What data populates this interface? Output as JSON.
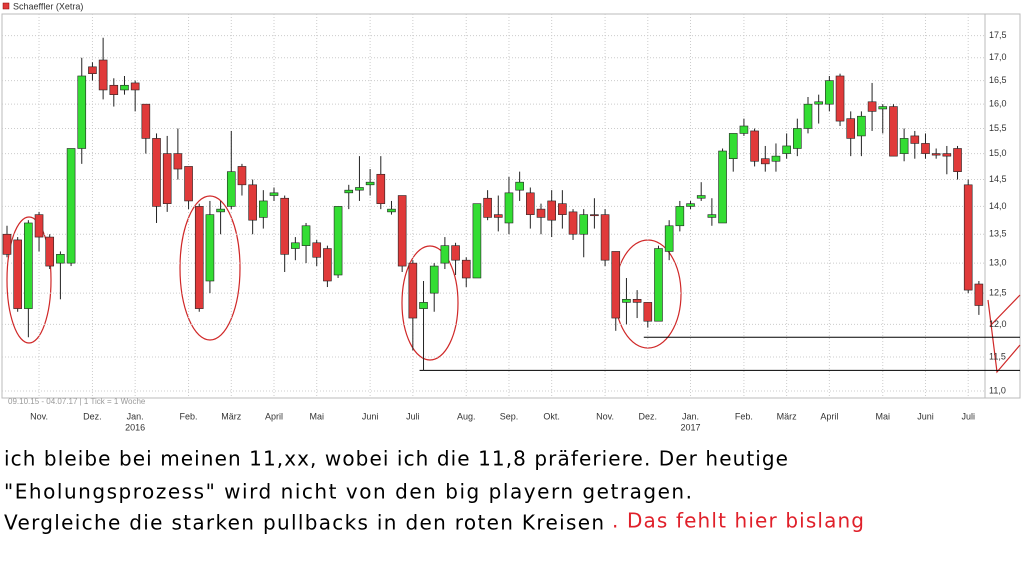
{
  "chart_data": {
    "type": "candlestick",
    "legend": "Schaeffler (Xetra)",
    "footer": "09.10.15 - 04.07.17 | 1 Tick = 1 Woche",
    "ylog": true,
    "grid": true,
    "up_color": "#33dd33",
    "down_color": "#e03a3a",
    "ylim": [
      10.9,
      18.0
    ],
    "yticks": [
      {
        "value": 11.0,
        "label": "11,0"
      },
      {
        "value": 11.5,
        "label": "11,5"
      },
      {
        "value": 12.0,
        "label": "12,0"
      },
      {
        "value": 12.5,
        "label": "12,5"
      },
      {
        "value": 13.0,
        "label": "13,0"
      },
      {
        "value": 13.5,
        "label": "13,5"
      },
      {
        "value": 14.0,
        "label": "14,0"
      },
      {
        "value": 14.5,
        "label": "14,5"
      },
      {
        "value": 15.0,
        "label": "15,0"
      },
      {
        "value": 15.5,
        "label": "15,5"
      },
      {
        "value": 16.0,
        "label": "16,0"
      },
      {
        "value": 16.5,
        "label": "16,5"
      },
      {
        "value": 17.0,
        "label": "17,0"
      },
      {
        "value": 17.5,
        "label": "17,5"
      }
    ],
    "xticks": [
      {
        "value": 3,
        "label": "Nov."
      },
      {
        "value": 8,
        "label": "Dez."
      },
      {
        "value": 12,
        "label": "Jan."
      },
      {
        "value": 17,
        "label": "Feb."
      },
      {
        "value": 21,
        "label": "März"
      },
      {
        "value": 25,
        "label": "April"
      },
      {
        "value": 29,
        "label": "Mai"
      },
      {
        "value": 34,
        "label": "Juni"
      },
      {
        "value": 38,
        "label": "Juli"
      },
      {
        "value": 43,
        "label": "Aug."
      },
      {
        "value": 47,
        "label": "Sep."
      },
      {
        "value": 51,
        "label": "Okt."
      },
      {
        "value": 56,
        "label": "Nov."
      },
      {
        "value": 60,
        "label": "Dez."
      },
      {
        "value": 64,
        "label": "Jan."
      },
      {
        "value": 69,
        "label": "Feb."
      },
      {
        "value": 73,
        "label": "März"
      },
      {
        "value": 77,
        "label": "April"
      },
      {
        "value": 82,
        "label": "Mai"
      },
      {
        "value": 86,
        "label": "Juni"
      },
      {
        "value": 90,
        "label": "Juli"
      }
    ],
    "year_labels": [
      {
        "value": 12,
        "label": "2016"
      },
      {
        "value": 64,
        "label": "2017"
      }
    ],
    "open": [
      13.5,
      13.4,
      12.25,
      13.85,
      13.45,
      13.0,
      13.0,
      15.1,
      16.8,
      16.95,
      16.4,
      16.3,
      16.45,
      16.0,
      15.3,
      15.0,
      15.0,
      14.75,
      14.0,
      12.7,
      13.9,
      14.0,
      14.75,
      14.4,
      13.8,
      14.2,
      14.15,
      13.25,
      13.3,
      13.35,
      13.25,
      12.8,
      14.25,
      14.3,
      14.4,
      14.6,
      13.9,
      14.2,
      13.0,
      12.25,
      12.5,
      13.0,
      13.3,
      13.05,
      12.75,
      14.15,
      13.85,
      13.7,
      14.3,
      14.25,
      13.95,
      14.1,
      14.05,
      13.9,
      13.5,
      13.85,
      13.85,
      13.2,
      12.35,
      12.4,
      12.35,
      12.05,
      13.2,
      13.65,
      14.0,
      14.15,
      13.8,
      13.7,
      14.9,
      15.4,
      15.45,
      14.9,
      14.85,
      15.0,
      15.1,
      15.5,
      16.0,
      16.0,
      16.6,
      15.7,
      15.35,
      16.05,
      15.9,
      15.95,
      15.0,
      15.35,
      15.2,
      15.0,
      15.0,
      15.1,
      14.4,
      12.65
    ],
    "high": [
      13.65,
      13.45,
      13.75,
      13.9,
      13.5,
      13.2,
      15.1,
      17.0,
      16.9,
      17.45,
      16.55,
      16.6,
      16.5,
      16.0,
      15.4,
      15.35,
      15.5,
      14.75,
      14.05,
      14.1,
      14.1,
      15.45,
      14.8,
      14.5,
      14.3,
      14.35,
      14.2,
      13.45,
      13.7,
      13.4,
      13.3,
      14.0,
      14.4,
      14.95,
      14.7,
      14.95,
      14.1,
      14.2,
      13.05,
      12.7,
      13.0,
      13.45,
      13.35,
      13.1,
      14.05,
      14.3,
      14.2,
      14.55,
      14.65,
      14.35,
      14.05,
      14.3,
      14.3,
      13.95,
      13.95,
      14.15,
      13.95,
      13.2,
      12.75,
      12.55,
      12.35,
      13.3,
      13.75,
      14.1,
      14.1,
      14.45,
      14.15,
      15.1,
      15.4,
      15.7,
      15.5,
      15.15,
      15.2,
      15.4,
      15.7,
      16.15,
      16.2,
      16.6,
      16.65,
      15.85,
      15.85,
      16.45,
      16.0,
      16.0,
      15.5,
      15.45,
      15.4,
      15.1,
      15.15,
      15.15,
      14.5,
      12.7
    ],
    "low": [
      13.1,
      12.2,
      11.8,
      13.2,
      12.9,
      12.4,
      12.95,
      14.8,
      16.5,
      16.1,
      15.95,
      16.2,
      15.85,
      15.0,
      13.7,
      13.9,
      14.5,
      13.95,
      12.2,
      12.5,
      13.5,
      13.95,
      14.2,
      13.5,
      13.6,
      14.1,
      12.85,
      13.05,
      13.0,
      12.95,
      12.6,
      12.75,
      13.95,
      14.1,
      14.2,
      13.95,
      13.85,
      12.85,
      11.6,
      11.3,
      12.2,
      12.9,
      12.8,
      12.6,
      12.75,
      13.75,
      13.55,
      13.5,
      14.1,
      13.6,
      13.5,
      13.45,
      13.6,
      13.4,
      13.1,
      13.6,
      12.95,
      11.9,
      12.0,
      12.1,
      11.95,
      12.05,
      13.05,
      13.55,
      13.95,
      14.1,
      13.65,
      13.7,
      14.65,
      15.35,
      14.75,
      14.65,
      14.65,
      14.9,
      14.95,
      15.4,
      15.6,
      15.85,
      15.55,
      14.95,
      14.95,
      15.45,
      15.4,
      14.95,
      14.85,
      14.9,
      14.9,
      14.9,
      14.6,
      14.5,
      12.5,
      12.15
    ],
    "close": [
      13.15,
      12.25,
      13.7,
      13.45,
      12.95,
      13.15,
      15.1,
      16.6,
      16.65,
      16.3,
      16.2,
      16.4,
      16.3,
      15.3,
      14.0,
      14.05,
      14.7,
      14.1,
      12.25,
      13.85,
      13.95,
      14.65,
      14.4,
      13.75,
      14.1,
      14.25,
      13.15,
      13.35,
      13.65,
      13.1,
      12.7,
      14.0,
      14.3,
      14.35,
      14.45,
      14.05,
      13.95,
      12.95,
      12.1,
      12.35,
      12.95,
      13.3,
      13.05,
      12.75,
      14.05,
      13.8,
      13.8,
      14.25,
      14.45,
      13.85,
      13.8,
      13.75,
      13.85,
      13.5,
      13.85,
      13.83,
      13.05,
      12.1,
      12.4,
      12.35,
      12.05,
      13.25,
      13.65,
      14.0,
      14.05,
      14.2,
      13.85,
      15.05,
      15.4,
      15.55,
      14.85,
      14.8,
      14.95,
      15.15,
      15.5,
      16.0,
      16.05,
      16.5,
      15.65,
      15.3,
      15.75,
      15.85,
      15.95,
      14.95,
      15.3,
      15.2,
      15.0,
      14.97,
      14.95,
      14.65,
      12.55,
      12.3
    ],
    "hlines": [
      {
        "value": 11.8,
        "from": 60
      },
      {
        "value": 11.3,
        "from": 39
      }
    ]
  },
  "post": {
    "lines": [
      "ich bleibe bei meinen 11,xx, wobei ich die 11,8 präferiere.  Der heutige",
      "\"Eholungsprozess\" wird nicht von den big playern getragen.",
      "Vergleiche die starken pullbacks in den roten Kreisen"
    ],
    "remark": ". Das fehlt hier bislang"
  }
}
